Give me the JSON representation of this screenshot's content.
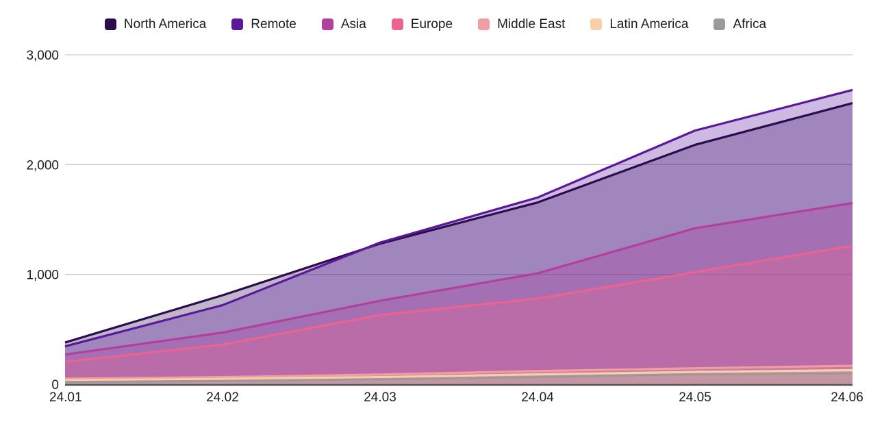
{
  "legend": {
    "items": [
      {
        "label": "North America",
        "color": "#2b0d4e"
      },
      {
        "label": "Remote",
        "color": "#5b189b"
      },
      {
        "label": "Asia",
        "color": "#b23f9e"
      },
      {
        "label": "Europe",
        "color": "#ec6390"
      },
      {
        "label": "Middle East",
        "color": "#f29da2"
      },
      {
        "label": "Latin America",
        "color": "#f9cfa7"
      },
      {
        "label": "Africa",
        "color": "#9c999c"
      }
    ]
  },
  "chart_data": {
    "type": "area",
    "title": "",
    "xlabel": "",
    "ylabel": "",
    "categories": [
      "24.01",
      "24.02",
      "24.03",
      "24.04",
      "24.05",
      "24.06"
    ],
    "series": [
      {
        "name": "North America",
        "color": "#2b0d4e",
        "values": [
          380,
          810,
          1280,
          1655,
          2180,
          2560
        ]
      },
      {
        "name": "Remote",
        "color": "#5b189b",
        "values": [
          345,
          720,
          1290,
          1700,
          2310,
          2680
        ]
      },
      {
        "name": "Asia",
        "color": "#b23f9e",
        "values": [
          270,
          470,
          760,
          1010,
          1420,
          1650
        ]
      },
      {
        "name": "Europe",
        "color": "#ec6390",
        "values": [
          205,
          360,
          630,
          780,
          1020,
          1260
        ]
      },
      {
        "name": "Middle East",
        "color": "#f29da2",
        "values": [
          50,
          65,
          88,
          120,
          145,
          168
        ]
      },
      {
        "name": "Latin America",
        "color": "#f9cfa7",
        "values": [
          35,
          48,
          65,
          90,
          112,
          128
        ]
      },
      {
        "name": "Africa",
        "color": "#9c999c",
        "values": [
          20,
          30,
          45,
          65,
          90,
          100
        ]
      }
    ],
    "ylim": [
      0,
      3000
    ],
    "y_ticks": [
      {
        "value": 0,
        "label": "0"
      },
      {
        "value": 1000,
        "label": "1,000"
      },
      {
        "value": 2000,
        "label": "2,000"
      },
      {
        "value": 3000,
        "label": "3,000"
      }
    ],
    "grid": "horizontal-only",
    "legend_position": "top",
    "fill_opacity": 0.3,
    "colors": {
      "background": "#ffffff",
      "grid_color": "#cbcbcf",
      "baseline_color": "#56525a",
      "tick_label_color": "#1c1c1c"
    }
  }
}
